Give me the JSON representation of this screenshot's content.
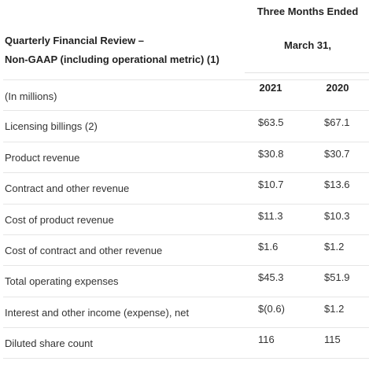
{
  "table": {
    "title_line1": "Quarterly Financial Review –",
    "title_line2": "Non-GAAP (including operational metric) (1)",
    "period_line1": "Three Months Ended",
    "period_line2": "March 31,",
    "years": [
      "2021",
      "2020"
    ],
    "units_label": "(In millions)",
    "rows": [
      {
        "label": "Licensing billings (2)",
        "v2021": "$63.5",
        "v2020": "$67.1"
      },
      {
        "label": "Product revenue",
        "v2021": "$30.8",
        "v2020": "$30.7"
      },
      {
        "label": "Contract and other revenue",
        "v2021": "$10.7",
        "v2020": "$13.6"
      },
      {
        "label": "Cost of product revenue",
        "v2021": "$11.3",
        "v2020": "$10.3"
      },
      {
        "label": "Cost of contract and other revenue",
        "v2021": "$1.6",
        "v2020": "$1.2"
      },
      {
        "label": "Total operating expenses",
        "v2021": "$45.3",
        "v2020": "$51.9"
      },
      {
        "label": "Interest and other income (expense), net",
        "v2021": "$(0.6)",
        "v2020": "$1.2"
      },
      {
        "label": "Diluted share count",
        "v2021": "116",
        "v2020": "115"
      }
    ]
  }
}
